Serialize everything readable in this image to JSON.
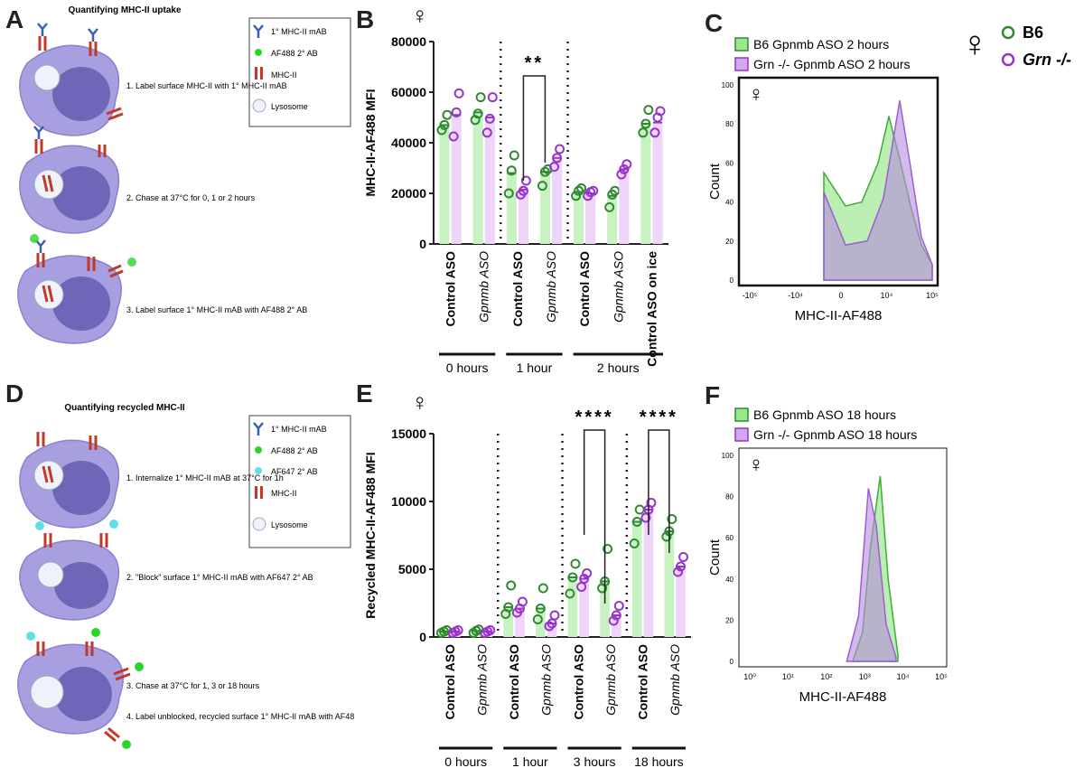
{
  "panel_letters": {
    "a": "A",
    "b": "B",
    "c": "C",
    "d": "D",
    "e": "E",
    "f": "F"
  },
  "female_symbol": "♀",
  "schematic_top": {
    "title": "Quantifying MHC-II uptake",
    "legend": [
      "1° MHC-II mAB",
      "AF488  2° AB",
      "MHC-II",
      "Lysosome"
    ],
    "steps": [
      "1.  Label surface MHC-II with 1° MHC-II mAB",
      "2.  Chase at 37°C for 0, 1 or 2 hours",
      "3.  Label  surface 1° MHC-II mAB with AF488  2° AB"
    ]
  },
  "schematic_bottom": {
    "title": "Quantifying recycled MHC-II",
    "legend": [
      "1° MHC-II mAB",
      "AF488  2° AB",
      "AF647  2° AB",
      "MHC-II",
      "Lysosome"
    ],
    "steps": [
      "1.  Internalize 1° MHC-II mAB at 37°C for 1h",
      "2.  \"Block\" surface 1° MHC-II mAB with AF647  2° AB",
      "3.  Chase at 37°C for 1, 3 or 18 hours",
      "4.  Label unblocked, recycled surface 1° MHC-II mAB with AF488  2° AB"
    ]
  },
  "genotype_legend": {
    "b6": "B6",
    "grn": "Grn -/-"
  },
  "colors": {
    "green": "#2e8b2e",
    "green_fill": "#c9f2c2",
    "purple": "#9933cc",
    "purple_fill": "#efd5fa",
    "cell": "#a79fe0",
    "nucleus": "#6e66b8"
  },
  "chart_data": [
    {
      "id": "B",
      "type": "bar",
      "ylabel": "MHC-II-AF488 MFI",
      "ylim": [
        0,
        80000
      ],
      "yticks": [
        "0",
        "20000",
        "40000",
        "60000",
        "80000"
      ],
      "categories": [
        "Control ASO",
        "Gpnmb ASO",
        "Control ASO",
        "Gpnmb ASO",
        "Control ASO",
        "Gpnmb ASO",
        "Control ASO on ice"
      ],
      "groups": [
        {
          "label": "0 hours"
        },
        {
          "label": "1 hour"
        },
        {
          "label": "2 hours"
        }
      ],
      "series": [
        {
          "name": "B6",
          "values": [
            47000,
            52000,
            28000,
            28500,
            20500,
            19000,
            47500
          ],
          "points": [
            [
              45000,
              47000,
              51000
            ],
            [
              49000,
              51500,
              58000
            ],
            [
              20000,
              29000,
              35000
            ],
            [
              23000,
              28500,
              29500
            ],
            [
              19000,
              21000,
              22000
            ],
            [
              14500,
              19500,
              21000
            ],
            [
              44000,
              47500,
              53000
            ]
          ]
        },
        {
          "name": "Grn -/-",
          "values": [
            51000,
            50000,
            21500,
            34000,
            20000,
            29500,
            48000
          ],
          "points": [
            [
              42500,
              52000,
              59500
            ],
            [
              44000,
              49500,
              58000
            ],
            [
              19500,
              21000,
              25000
            ],
            [
              30500,
              34000,
              37500
            ],
            [
              19000,
              20500,
              21000
            ],
            [
              27500,
              29500,
              31500
            ],
            [
              44000,
              50000,
              52500
            ]
          ]
        }
      ],
      "significance": {
        "label": "**",
        "between": [
          5,
          6
        ]
      }
    },
    {
      "id": "E",
      "type": "bar",
      "ylabel": "Recycled MHC-II-AF488 MFI",
      "ylim": [
        0,
        15000
      ],
      "yticks": [
        "0",
        "5000",
        "10000",
        "15000"
      ],
      "categories": [
        "Control ASO",
        "Gpnmb ASO",
        "Control ASO",
        "Gpnmb ASO",
        "Control ASO",
        "Gpnmb ASO",
        "Control ASO",
        "Gpnmb ASO"
      ],
      "groups": [
        {
          "label": "0 hours"
        },
        {
          "label": "1 hour"
        },
        {
          "label": "3 hours"
        },
        {
          "label": "18 hours"
        }
      ],
      "series": [
        {
          "name": "B6",
          "values": [
            400,
            450,
            2200,
            2100,
            4400,
            4100,
            8500,
            7800
          ],
          "points": [
            [
              300,
              400,
              500
            ],
            [
              300,
              450,
              550
            ],
            [
              1700,
              2200,
              3800
            ],
            [
              1300,
              2100,
              3600
            ],
            [
              3200,
              4400,
              5400
            ],
            [
              3600,
              4100,
              6500
            ],
            [
              6900,
              8500,
              9400
            ],
            [
              7400,
              7800,
              8700
            ]
          ]
        },
        {
          "name": "Grn -/-",
          "values": [
            400,
            400,
            2100,
            1000,
            4300,
            1600,
            9400,
            5200
          ],
          "points": [
            [
              300,
              400,
              500
            ],
            [
              300,
              400,
              500
            ],
            [
              1800,
              2100,
              2600
            ],
            [
              800,
              1000,
              1600
            ],
            [
              3700,
              4300,
              4700
            ],
            [
              1200,
              1600,
              2300
            ],
            [
              8800,
              9400,
              9900
            ],
            [
              4800,
              5200,
              5900
            ]
          ]
        }
      ],
      "significance": [
        {
          "label": "****",
          "between": [
            9,
            10
          ]
        },
        {
          "label": "****",
          "between": [
            13,
            14
          ]
        }
      ]
    },
    {
      "id": "C",
      "type": "area",
      "xlabel": "MHC-II-AF488",
      "ylabel": "Count",
      "xticks": [
        "-10⁵",
        "-10⁴",
        "0",
        "10⁴",
        "10⁵"
      ],
      "yticks": [
        "0",
        "20",
        "40",
        "60",
        "80",
        "100"
      ],
      "ylim": [
        0,
        100
      ],
      "series": [
        {
          "name": "B6 Gpnmb ASO 2 hours",
          "x": [
            0.0,
            0.2,
            0.35,
            0.5,
            0.6,
            0.7,
            0.8,
            0.9,
            1.0
          ],
          "y": [
            55,
            38,
            40,
            60,
            84,
            62,
            38,
            18,
            8
          ]
        },
        {
          "name": "Grn -/- Gpnmb ASO 2 hours",
          "x": [
            0.0,
            0.2,
            0.4,
            0.55,
            0.7,
            0.8,
            0.9,
            1.0
          ],
          "y": [
            45,
            18,
            20,
            42,
            92,
            58,
            22,
            8
          ]
        }
      ]
    },
    {
      "id": "F",
      "type": "area",
      "xlabel": "MHC-II-AF488",
      "ylabel": "Count",
      "xticks": [
        "10⁰",
        "10¹",
        "10²",
        "10³",
        "10⁴",
        "10⁵"
      ],
      "yticks": [
        "0",
        "20",
        "40",
        "60",
        "80",
        "100"
      ],
      "ylim": [
        0,
        100
      ],
      "series": [
        {
          "name": "B6 Gpnmb ASO 18 hours",
          "x": [
            0.55,
            0.6,
            0.64,
            0.69,
            0.73,
            0.78
          ],
          "y": [
            0,
            14,
            55,
            90,
            40,
            3
          ]
        },
        {
          "name": "Grn -/- Gpnmb ASO 18 hours",
          "x": [
            0.52,
            0.58,
            0.63,
            0.67,
            0.72,
            0.77
          ],
          "y": [
            0,
            22,
            84,
            66,
            18,
            2
          ]
        }
      ]
    }
  ],
  "legend_C": [
    "B6 Gpnmb ASO 2 hours",
    "Grn -/- Gpnmb ASO 2 hours"
  ],
  "legend_F": [
    "B6 Gpnmb ASO 18 hours",
    "Grn -/- Gpnmb ASO 18 hours"
  ]
}
